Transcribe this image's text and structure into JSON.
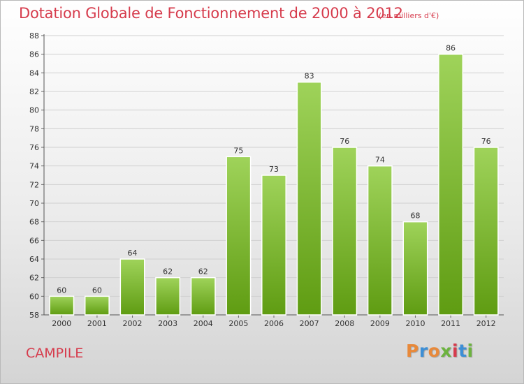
{
  "header": {
    "title": "Dotation Globale de Fonctionnement de 2000 à 2012",
    "unit": "(en milliers d'€)"
  },
  "footer": {
    "commune": "CAMPILE",
    "logo_text": "Proxiti",
    "logo_colors": [
      "#e8893a",
      "#3d8fd6",
      "#e8893a",
      "#6cb33f",
      "#d63b4c",
      "#3d8fd6",
      "#6cb33f"
    ]
  },
  "colors": {
    "bar_top": "#9fd35a",
    "bar_bottom": "#5f9c12",
    "title": "#d63b4c"
  },
  "chart_data": {
    "type": "bar",
    "categories": [
      "2000",
      "2001",
      "2002",
      "2003",
      "2004",
      "2005",
      "2006",
      "2007",
      "2008",
      "2009",
      "2010",
      "2011",
      "2012"
    ],
    "values": [
      60,
      60,
      64,
      62,
      62,
      75,
      73,
      83,
      76,
      74,
      68,
      86,
      76
    ],
    "title": "Dotation Globale de Fonctionnement de 2000 à 2012",
    "xlabel": "",
    "ylabel": "",
    "ylim": [
      58,
      88
    ],
    "yticks": [
      58,
      60,
      62,
      64,
      66,
      68,
      70,
      72,
      74,
      76,
      78,
      80,
      82,
      84,
      86,
      88
    ],
    "grid": true,
    "data_labels": true
  }
}
